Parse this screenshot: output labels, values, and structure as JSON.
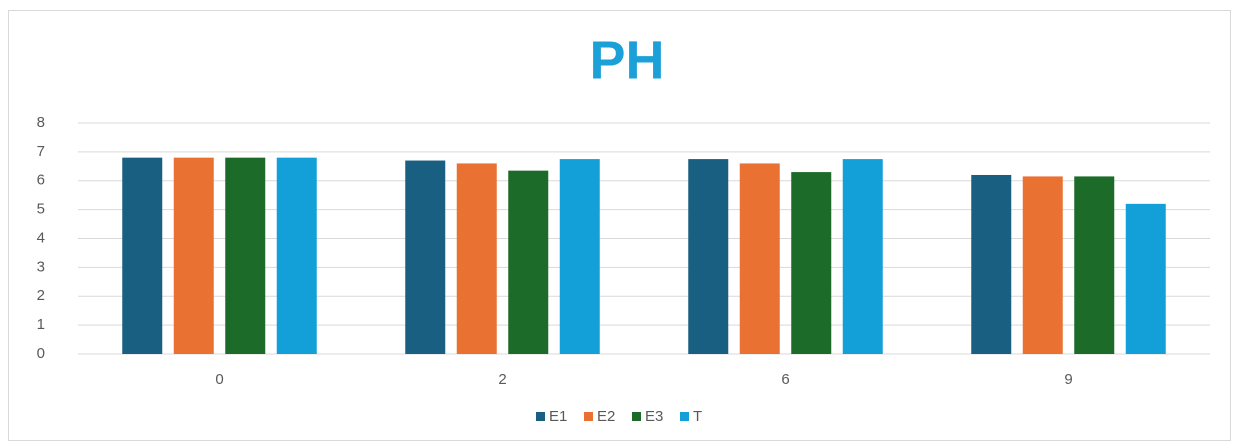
{
  "chart_data": {
    "type": "bar",
    "title": "PH",
    "categories": [
      "0",
      "2",
      "6",
      "9"
    ],
    "series": [
      {
        "name": "E1",
        "color": "#185f82",
        "values": [
          6.8,
          6.7,
          6.75,
          6.2
        ]
      },
      {
        "name": "E2",
        "color": "#e97132",
        "values": [
          6.8,
          6.6,
          6.6,
          6.15
        ]
      },
      {
        "name": "E3",
        "color": "#1c6b29",
        "values": [
          6.8,
          6.35,
          6.3,
          6.15
        ]
      },
      {
        "name": "T",
        "color": "#139fd8",
        "values": [
          6.8,
          6.75,
          6.75,
          5.2
        ]
      }
    ],
    "ylim": [
      0,
      8
    ],
    "yticks": [
      0,
      1,
      2,
      3,
      4,
      5,
      6,
      7,
      8
    ],
    "grid": true,
    "legend": "bottom"
  }
}
